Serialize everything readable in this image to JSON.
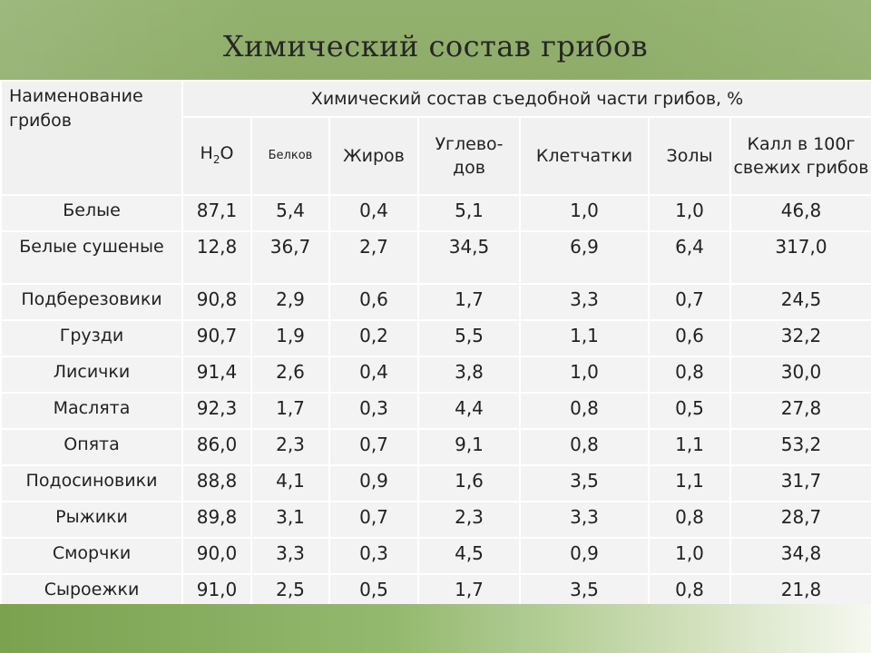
{
  "slide": {
    "title": "Химический состав грибов"
  },
  "table": {
    "name_header": "Наименование грибов",
    "group_header": "Химический состав съедобной части грибов, %",
    "columns": {
      "water_prefix": "H",
      "water_sub": "2",
      "water_suffix": "O",
      "protein": "Белков",
      "fat": "Жиров",
      "carbs": "Углево-дов",
      "fiber": "Клетчатки",
      "ash": "Золы",
      "calories": "Калл в 100г свежих грибов"
    },
    "rows": [
      {
        "name": "Белые",
        "values": [
          "87,1",
          "5,4",
          "0,4",
          "5,1",
          "1,0",
          "1,0",
          "46,8"
        ]
      },
      {
        "name": "Белые сушеные",
        "values": [
          "12,8",
          "36,7",
          "2,7",
          "34,5",
          "6,9",
          "6,4",
          "317,0"
        ]
      },
      {
        "name": "Подберезовики",
        "values": [
          "90,8",
          "2,9",
          "0,6",
          "1,7",
          "3,3",
          "0,7",
          "24,5"
        ]
      },
      {
        "name": "Грузди",
        "values": [
          "90,7",
          "1,9",
          "0,2",
          "5,5",
          "1,1",
          "0,6",
          "32,2"
        ]
      },
      {
        "name": "Лисички",
        "values": [
          "91,4",
          "2,6",
          "0,4",
          "3,8",
          "1,0",
          "0,8",
          "30,0"
        ]
      },
      {
        "name": "Маслята",
        "values": [
          "92,3",
          "1,7",
          "0,3",
          "4,4",
          "0,8",
          "0,5",
          "27,8"
        ]
      },
      {
        "name": "Опята",
        "values": [
          "86,0",
          "2,3",
          "0,7",
          "9,1",
          "0,8",
          "1,1",
          "53,2"
        ]
      },
      {
        "name": "Подосиновики",
        "values": [
          "88,8",
          "4,1",
          "0,9",
          "1,6",
          "3,5",
          "1,1",
          "31,7"
        ]
      },
      {
        "name": "Рыжики",
        "values": [
          "89,8",
          "3,1",
          "0,7",
          "2,3",
          "3,3",
          "0,8",
          "28,7"
        ]
      },
      {
        "name": "Сморчки",
        "values": [
          "90,0",
          "3,3",
          "0,3",
          "4,5",
          "0,9",
          "1,0",
          "34,8"
        ]
      },
      {
        "name": "Сыроежки",
        "values": [
          "91,0",
          "2,5",
          "0,5",
          "1,7",
          "3,5",
          "0,8",
          "21,8"
        ]
      }
    ]
  },
  "colors": {
    "header_green": "#8fad69",
    "footer_green": "#7aa24f",
    "table_bg": "#f3f3f3"
  }
}
